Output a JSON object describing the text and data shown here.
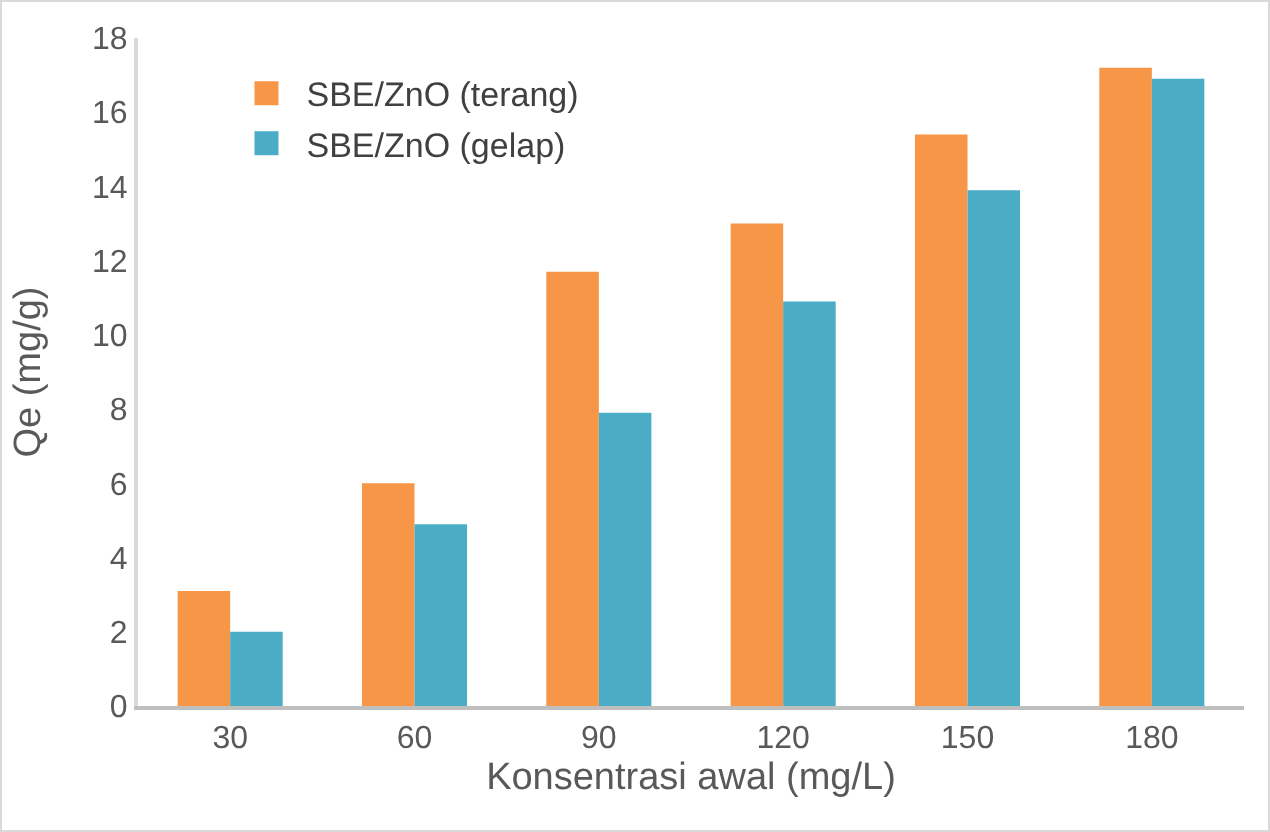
{
  "chart_data": {
    "type": "bar",
    "xlabel": "Konsentrasi awal (mg/L)",
    "ylabel": "Qe (mg/g)",
    "categories": [
      "30",
      "60",
      "90",
      "120",
      "150",
      "180"
    ],
    "series": [
      {
        "name": "SBE/ZnO (terang)",
        "color": "#f79646",
        "values": [
          3.1,
          6.0,
          11.7,
          13.0,
          15.4,
          17.2
        ]
      },
      {
        "name": "SBE/ZnO (gelap)",
        "color": "#4bacc6",
        "values": [
          2.0,
          4.9,
          7.9,
          10.9,
          13.9,
          16.9
        ]
      }
    ],
    "ylim": [
      0,
      18
    ],
    "yticks": [
      0,
      2,
      4,
      6,
      8,
      10,
      12,
      14,
      16,
      18
    ],
    "grid": false,
    "legend": "top left"
  }
}
